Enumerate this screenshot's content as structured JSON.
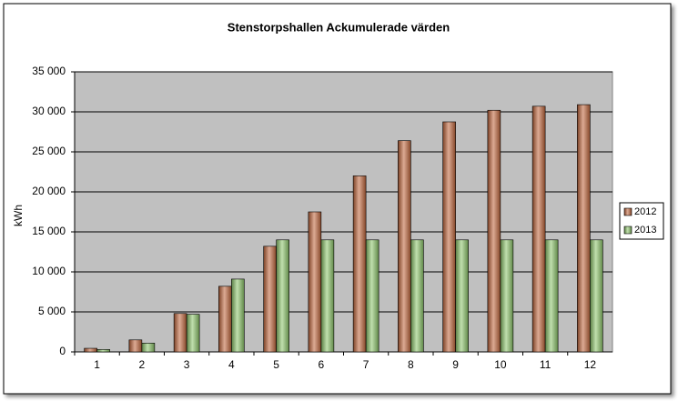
{
  "chart_data": {
    "type": "bar",
    "title": "Stenstorpshallen Ackumulerade värden",
    "y_label": "kWh",
    "categories": [
      "1",
      "2",
      "3",
      "4",
      "5",
      "6",
      "7",
      "8",
      "9",
      "10",
      "11",
      "12"
    ],
    "series": [
      {
        "name": "2012",
        "color": "#c0653a",
        "values": [
          450,
          1500,
          4800,
          8200,
          13200,
          17500,
          22000,
          26400,
          28750,
          30200,
          30700,
          30900
        ]
      },
      {
        "name": "2013",
        "color": "#8cc56a",
        "values": [
          300,
          1100,
          4700,
          9100,
          14000,
          14000,
          14000,
          14000,
          14000,
          14000,
          14000,
          14000
        ]
      }
    ],
    "ylim": [
      0,
      35000
    ],
    "yticks": [
      0,
      {
        "value": 5000,
        "label": "5 000"
      },
      {
        "value": 10000,
        "label": "10 000"
      },
      {
        "value": 15000,
        "label": "15 000"
      },
      {
        "value": 20000,
        "label": "20 000"
      },
      {
        "value": 25000,
        "label": "25 000"
      },
      {
        "value": 30000,
        "label": "30 000"
      },
      {
        "value": 35000,
        "label": "35 000"
      }
    ],
    "grid": true,
    "legend": "right"
  }
}
